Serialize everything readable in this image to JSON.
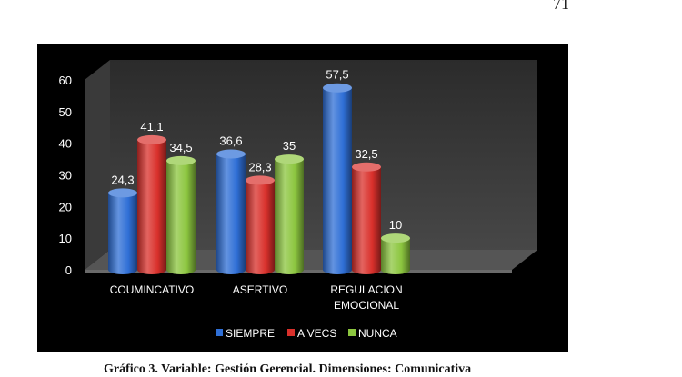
{
  "page": {
    "page_number": "71",
    "caption": "Gráfico 3. Variable: Gestión Gerencial. Dimensiones: Comunicativa"
  },
  "chart_data": {
    "type": "bar",
    "categories": [
      "COUMINCATIVO",
      "ASERTIVO",
      "REGULACION EMOCIONAL"
    ],
    "category_lines": [
      [
        "COUMINCATIVO"
      ],
      [
        "ASERTIVO"
      ],
      [
        "REGULACION",
        "EMOCIONAL"
      ]
    ],
    "series": [
      {
        "name": "SIEMPRE",
        "values": [
          24.3,
          36.6,
          57.5
        ],
        "value_labels": [
          "24,3",
          "36,6",
          "57,5"
        ],
        "color": "#2f6fd6"
      },
      {
        "name": "A VECS",
        "values": [
          41.1,
          28.3,
          32.5
        ],
        "value_labels": [
          "41,1",
          "28,3",
          "32,5"
        ],
        "color": "#d9302b"
      },
      {
        "name": "NUNCA",
        "values": [
          34.5,
          35,
          10
        ],
        "value_labels": [
          "34,5",
          "35",
          "10"
        ],
        "color": "#8cc63f"
      }
    ],
    "ylim": [
      0,
      60
    ],
    "yticks": [
      0,
      10,
      20,
      30,
      40,
      50,
      60
    ],
    "grid": false,
    "legend_position": "bottom",
    "background": "#000000"
  }
}
